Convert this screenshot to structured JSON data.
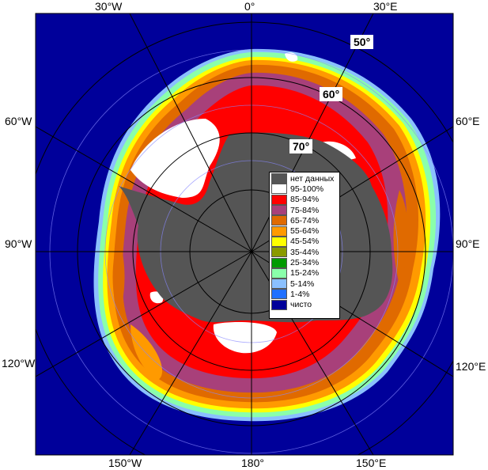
{
  "map": {
    "lon_labels": {
      "top_left": "30°W",
      "top_center": "0°",
      "top_right": "30°E",
      "left_upper": "60°W",
      "left_middle": "90°W",
      "left_lower": "120°W",
      "right_upper": "60°E",
      "right_middle": "90°E",
      "right_lower": "120°E",
      "bottom_left": "150°W",
      "bottom_center": "180°",
      "bottom_right": "150°E"
    },
    "lat_labels": {
      "lat50": "50°",
      "lat60": "60°",
      "lat70": "70°"
    }
  },
  "legend": {
    "items": [
      {
        "label": "нет данных",
        "color": "#555555"
      },
      {
        "label": "95-100%",
        "color": "#ffffff"
      },
      {
        "label": "85-94%",
        "color": "#ff0000"
      },
      {
        "label": "75-84%",
        "color": "#a8407a"
      },
      {
        "label": "65-74%",
        "color": "#e06a00"
      },
      {
        "label": "55-64%",
        "color": "#ff9a00"
      },
      {
        "label": "45-54%",
        "color": "#ffff00"
      },
      {
        "label": "35-44%",
        "color": "#8a9a00"
      },
      {
        "label": "25-34%",
        "color": "#009a00"
      },
      {
        "label": "15-24%",
        "color": "#8affaa"
      },
      {
        "label": "5-14%",
        "color": "#8ac0ff"
      },
      {
        "label": "1-4%",
        "color": "#2070ff"
      },
      {
        "label": "чисто",
        "color": "#00009a"
      }
    ]
  },
  "colors": {
    "ocean": "#00009a",
    "land": "#555555",
    "ice_95": "#ffffff",
    "ice_85": "#ff0000",
    "ice_75": "#a8407a",
    "ice_65": "#e06a00",
    "ice_55": "#ff9a00",
    "ice_45": "#ffff00",
    "ice_15": "#8affaa",
    "ice_5": "#8ac0ff"
  }
}
